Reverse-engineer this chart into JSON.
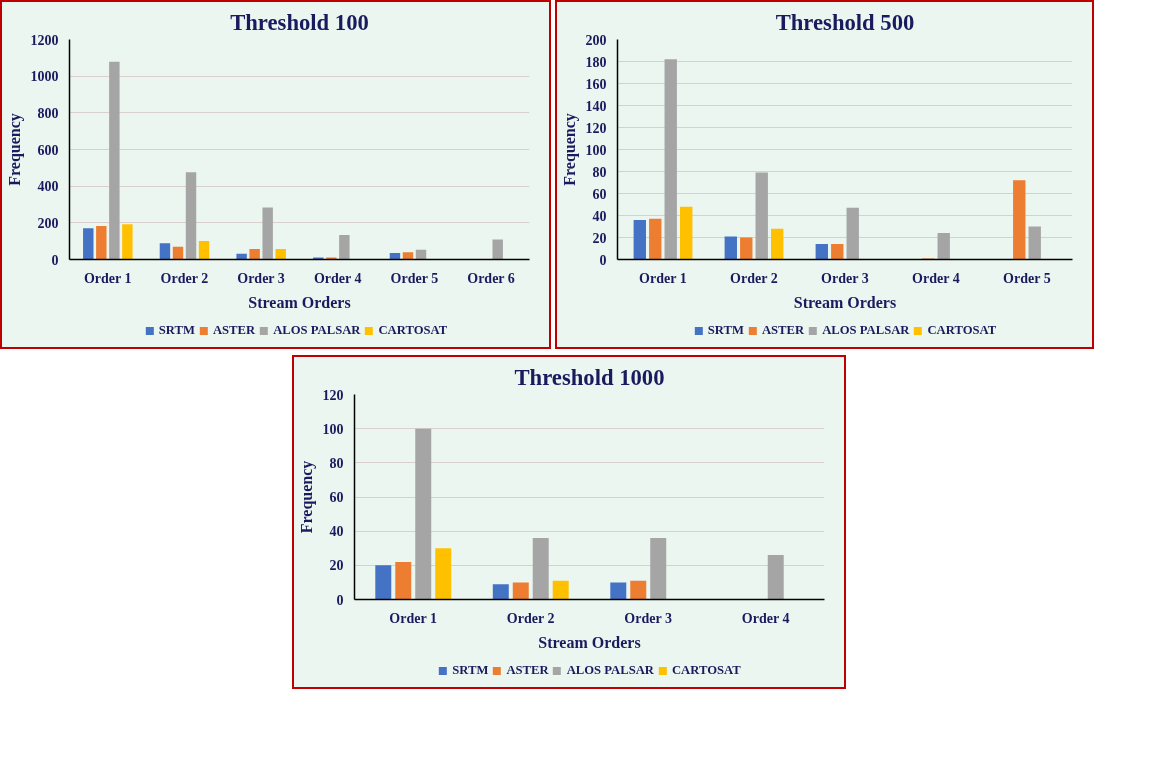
{
  "chart_data": [
    {
      "type": "bar",
      "title": "Threshold 100",
      "xlabel": "Stream Orders",
      "ylabel": "Frequency",
      "categories": [
        "Order 1",
        "Order 2",
        "Order 3",
        "Order 4",
        "Order 5",
        "Order 6"
      ],
      "ylim": [
        0,
        1200
      ],
      "yticks": [
        0,
        200,
        400,
        600,
        800,
        1000,
        1200
      ],
      "grid": "y",
      "legend": "bottom",
      "series": [
        {
          "name": "SRTM",
          "color": "#4472c4",
          "values": [
            170,
            88,
            32,
            11,
            36,
            null
          ]
        },
        {
          "name": "ASTER",
          "color": "#ed7d31",
          "values": [
            183,
            70,
            57,
            11,
            40,
            null
          ]
        },
        {
          "name": "ALOS PALSAR",
          "color": "#a5a5a5",
          "values": [
            1078,
            476,
            284,
            133,
            53,
            109
          ]
        },
        {
          "name": "CARTOSAT",
          "color": "#ffc000",
          "values": [
            192,
            101,
            57,
            null,
            null,
            null
          ]
        }
      ]
    },
    {
      "type": "bar",
      "title": "Threshold 500",
      "xlabel": "Stream Orders",
      "ylabel": "Frequency",
      "categories": [
        "Order 1",
        "Order 2",
        "Order 3",
        "Order 4",
        "Order 5"
      ],
      "ylim": [
        0,
        200
      ],
      "yticks": [
        0,
        20,
        40,
        60,
        80,
        100,
        120,
        140,
        160,
        180,
        200
      ],
      "grid": "y",
      "legend": "bottom",
      "series": [
        {
          "name": "SRTM",
          "color": "#4472c4",
          "values": [
            36,
            21,
            14,
            null,
            null
          ]
        },
        {
          "name": "ASTER",
          "color": "#ed7d31",
          "values": [
            37,
            20,
            14,
            1,
            72
          ]
        },
        {
          "name": "ALOS PALSAR",
          "color": "#a5a5a5",
          "values": [
            182,
            79,
            47,
            24,
            30
          ]
        },
        {
          "name": "CARTOSAT",
          "color": "#ffc000",
          "values": [
            48,
            28,
            null,
            null,
            null
          ]
        }
      ]
    },
    {
      "type": "bar",
      "title": "Threshold 1000",
      "xlabel": "Stream Orders",
      "ylabel": "Frequency",
      "categories": [
        "Order 1",
        "Order 2",
        "Order 3",
        "Order 4"
      ],
      "ylim": [
        0,
        120
      ],
      "yticks": [
        0,
        20,
        40,
        60,
        80,
        100,
        120
      ],
      "grid": "y",
      "legend": "bottom",
      "series": [
        {
          "name": "SRTM",
          "color": "#4472c4",
          "values": [
            20,
            9,
            10,
            null
          ]
        },
        {
          "name": "ASTER",
          "color": "#ed7d31",
          "values": [
            22,
            10,
            11,
            null
          ]
        },
        {
          "name": "ALOS PALSAR",
          "color": "#a5a5a5",
          "values": [
            100,
            36,
            36,
            26
          ]
        },
        {
          "name": "CARTOSAT",
          "color": "#ffc000",
          "values": [
            30,
            11,
            null,
            null
          ]
        }
      ]
    }
  ]
}
